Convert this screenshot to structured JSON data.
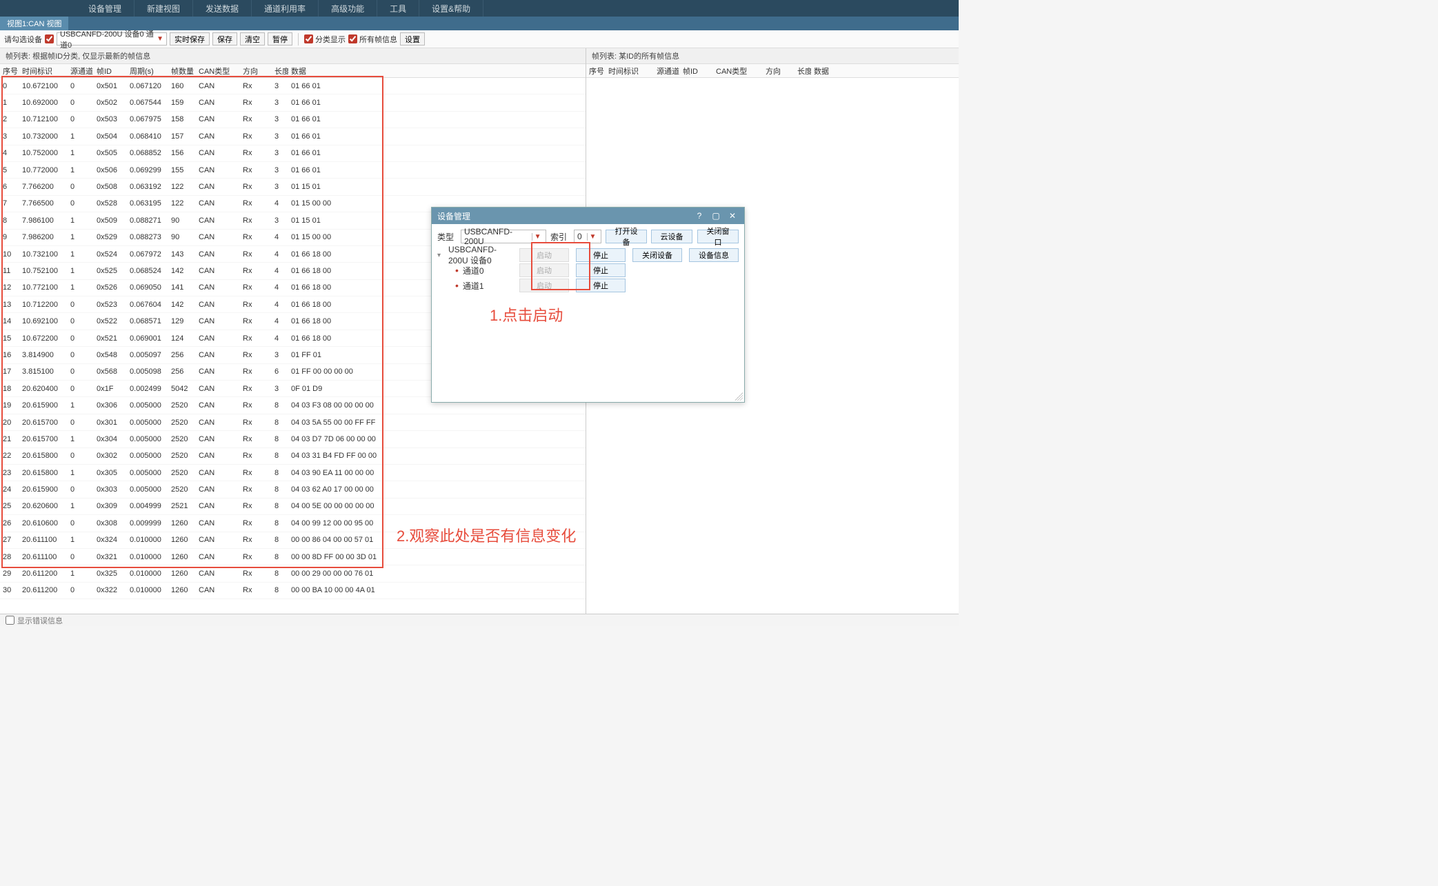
{
  "menu": {
    "items": [
      "设备管理",
      "新建视图",
      "发送数据",
      "通道利用率",
      "高级功能",
      "工具",
      "设置&帮助"
    ]
  },
  "view_tab": {
    "label": "视图1:CAN 视图"
  },
  "toolbar": {
    "select_device_label": "请勾选设备",
    "device_value": "USBCANFD-200U 设备0 通道0",
    "realtime_save": "实时保存",
    "save": "保存",
    "clear": "清空",
    "pause": "暂停",
    "group_show": "分类显示",
    "all_frames": "所有帧信息",
    "settings": "设置",
    "checkbox_device_checked": true,
    "checkbox_group_checked": true,
    "checkbox_all_checked": true
  },
  "left_pane": {
    "title": "帧列表: 根据帧ID分类, 仅显示最新的帧信息",
    "columns": [
      "序号",
      "时间标识",
      "源通道",
      "帧ID",
      "周期(s)",
      "帧数量",
      "CAN类型",
      "方向",
      "长度",
      "数据"
    ],
    "rows": [
      [
        "0",
        "10.672100",
        "0",
        "0x501",
        "0.067120",
        "160",
        "CAN",
        "Rx",
        "3",
        "01 66 01"
      ],
      [
        "1",
        "10.692000",
        "0",
        "0x502",
        "0.067544",
        "159",
        "CAN",
        "Rx",
        "3",
        "01 66 01"
      ],
      [
        "2",
        "10.712100",
        "0",
        "0x503",
        "0.067975",
        "158",
        "CAN",
        "Rx",
        "3",
        "01 66 01"
      ],
      [
        "3",
        "10.732000",
        "1",
        "0x504",
        "0.068410",
        "157",
        "CAN",
        "Rx",
        "3",
        "01 66 01"
      ],
      [
        "4",
        "10.752000",
        "1",
        "0x505",
        "0.068852",
        "156",
        "CAN",
        "Rx",
        "3",
        "01 66 01"
      ],
      [
        "5",
        "10.772000",
        "1",
        "0x506",
        "0.069299",
        "155",
        "CAN",
        "Rx",
        "3",
        "01 66 01"
      ],
      [
        "6",
        "7.766200",
        "0",
        "0x508",
        "0.063192",
        "122",
        "CAN",
        "Rx",
        "3",
        "01 15 01"
      ],
      [
        "7",
        "7.766500",
        "0",
        "0x528",
        "0.063195",
        "122",
        "CAN",
        "Rx",
        "4",
        "01 15 00 00"
      ],
      [
        "8",
        "7.986100",
        "1",
        "0x509",
        "0.088271",
        "90",
        "CAN",
        "Rx",
        "3",
        "01 15 01"
      ],
      [
        "9",
        "7.986200",
        "1",
        "0x529",
        "0.088273",
        "90",
        "CAN",
        "Rx",
        "4",
        "01 15 00 00"
      ],
      [
        "10",
        "10.732100",
        "1",
        "0x524",
        "0.067972",
        "143",
        "CAN",
        "Rx",
        "4",
        "01 66 18 00"
      ],
      [
        "11",
        "10.752100",
        "1",
        "0x525",
        "0.068524",
        "142",
        "CAN",
        "Rx",
        "4",
        "01 66 18 00"
      ],
      [
        "12",
        "10.772100",
        "1",
        "0x526",
        "0.069050",
        "141",
        "CAN",
        "Rx",
        "4",
        "01 66 18 00"
      ],
      [
        "13",
        "10.712200",
        "0",
        "0x523",
        "0.067604",
        "142",
        "CAN",
        "Rx",
        "4",
        "01 66 18 00"
      ],
      [
        "14",
        "10.692100",
        "0",
        "0x522",
        "0.068571",
        "129",
        "CAN",
        "Rx",
        "4",
        "01 66 18 00"
      ],
      [
        "15",
        "10.672200",
        "0",
        "0x521",
        "0.069001",
        "124",
        "CAN",
        "Rx",
        "4",
        "01 66 18 00"
      ],
      [
        "16",
        "3.814900",
        "0",
        "0x548",
        "0.005097",
        "256",
        "CAN",
        "Rx",
        "3",
        "01 FF 01"
      ],
      [
        "17",
        "3.815100",
        "0",
        "0x568",
        "0.005098",
        "256",
        "CAN",
        "Rx",
        "6",
        "01 FF 00 00 00 00"
      ],
      [
        "18",
        "20.620400",
        "0",
        "0x1F",
        "0.002499",
        "5042",
        "CAN",
        "Rx",
        "3",
        "0F 01 D9"
      ],
      [
        "19",
        "20.615900",
        "1",
        "0x306",
        "0.005000",
        "2520",
        "CAN",
        "Rx",
        "8",
        "04 03 F3 08 00 00 00 00"
      ],
      [
        "20",
        "20.615700",
        "0",
        "0x301",
        "0.005000",
        "2520",
        "CAN",
        "Rx",
        "8",
        "04 03 5A 55 00 00 FF FF"
      ],
      [
        "21",
        "20.615700",
        "1",
        "0x304",
        "0.005000",
        "2520",
        "CAN",
        "Rx",
        "8",
        "04 03 D7 7D 06 00 00 00"
      ],
      [
        "22",
        "20.615800",
        "0",
        "0x302",
        "0.005000",
        "2520",
        "CAN",
        "Rx",
        "8",
        "04 03 31 B4 FD FF 00 00"
      ],
      [
        "23",
        "20.615800",
        "1",
        "0x305",
        "0.005000",
        "2520",
        "CAN",
        "Rx",
        "8",
        "04 03 90 EA 11 00 00 00"
      ],
      [
        "24",
        "20.615900",
        "0",
        "0x303",
        "0.005000",
        "2520",
        "CAN",
        "Rx",
        "8",
        "04 03 62 A0 17 00 00 00"
      ],
      [
        "25",
        "20.620600",
        "1",
        "0x309",
        "0.004999",
        "2521",
        "CAN",
        "Rx",
        "8",
        "04 00 5E 00 00 00 00 00"
      ],
      [
        "26",
        "20.610600",
        "0",
        "0x308",
        "0.009999",
        "1260",
        "CAN",
        "Rx",
        "8",
        "04 00 99 12 00 00 95 00"
      ],
      [
        "27",
        "20.611100",
        "1",
        "0x324",
        "0.010000",
        "1260",
        "CAN",
        "Rx",
        "8",
        "00 00 86 04 00 00 57 01"
      ],
      [
        "28",
        "20.611100",
        "0",
        "0x321",
        "0.010000",
        "1260",
        "CAN",
        "Rx",
        "8",
        "00 00 8D FF 00 00 3D 01"
      ],
      [
        "29",
        "20.611200",
        "1",
        "0x325",
        "0.010000",
        "1260",
        "CAN",
        "Rx",
        "8",
        "00 00 29 00 00 00 76 01"
      ],
      [
        "30",
        "20.611200",
        "0",
        "0x322",
        "0.010000",
        "1260",
        "CAN",
        "Rx",
        "8",
        "00 00 BA 10 00 00 4A 01"
      ]
    ]
  },
  "right_pane": {
    "title": "帧列表: 某ID的所有帧信息",
    "columns": [
      "序号",
      "时间标识",
      "源通道",
      "帧ID",
      "CAN类型",
      "方向",
      "长度",
      "数据"
    ]
  },
  "dialog": {
    "title": "设备管理",
    "type_label": "类型",
    "type_value": "USBCANFD-200U",
    "index_label": "索引",
    "index_value": "0",
    "open_device": "打开设备",
    "cloud_device": "云设备",
    "close_window": "关闭窗口",
    "tree_root": "USBCANFD-200U 设备0",
    "channel0": "通道0",
    "channel1": "通道1",
    "start": "启动",
    "stop": "停止",
    "close_device": "关闭设备",
    "device_info": "设备信息"
  },
  "annotations": {
    "a1": "1.点击启动",
    "a2": "2.观察此处是否有信息变化"
  },
  "footer": {
    "label": "显示错误信息"
  },
  "colors": {
    "menu_bg": "#2b4a5f",
    "tab_bg": "#5a8cad",
    "dialog_title_bg": "#6a95ae",
    "accent_red": "#e74c3c",
    "btn_blue_bg": "#eaf3fa",
    "btn_blue_border": "#a5c5e0"
  }
}
